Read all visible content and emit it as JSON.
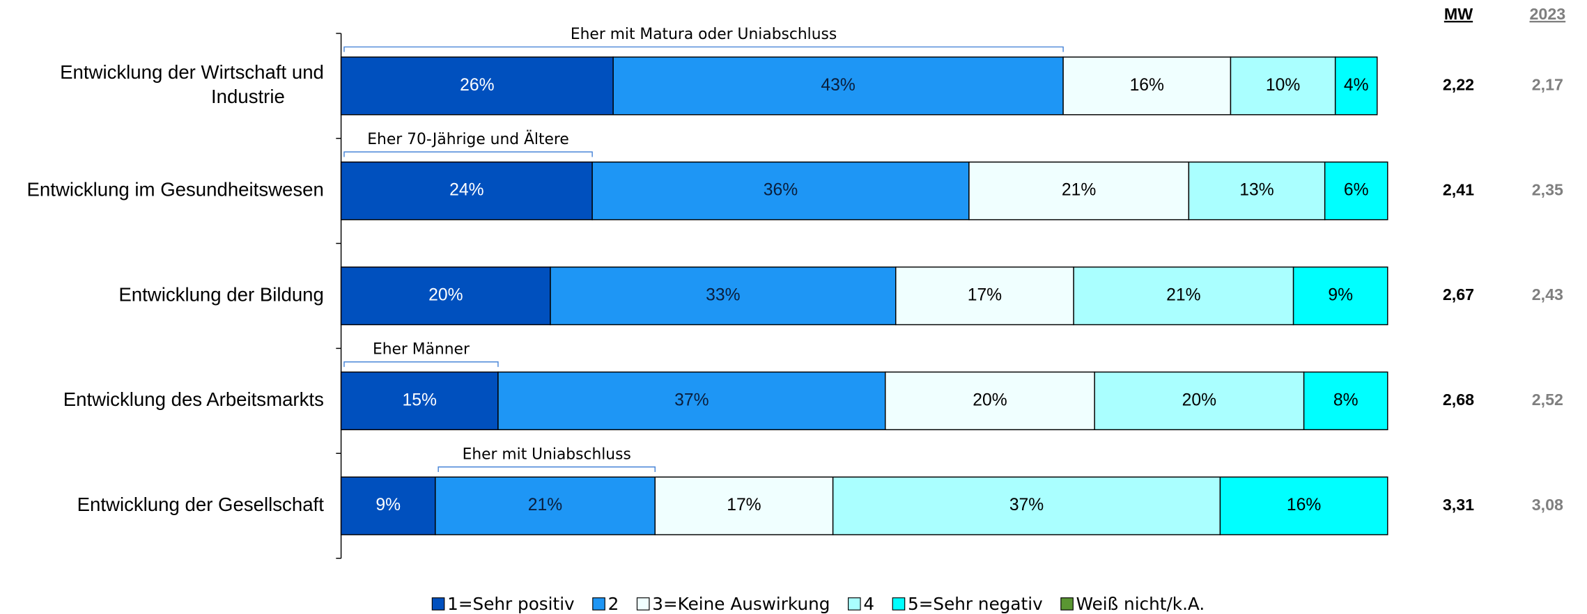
{
  "chart_data": {
    "type": "stacked_bar_horizontal",
    "categories": [
      "Entwicklung der Wirtschaft und Industrie",
      "Entwicklung im Gesundheitswesen",
      "Entwicklung der Bildung",
      "Entwicklung des Arbeitsmarkts",
      "Entwicklung der Gesellschaft"
    ],
    "series": [
      {
        "name": "1=Sehr positiv",
        "color": "#0050be",
        "text_color": "#ffffff",
        "values": [
          26,
          24,
          20,
          15,
          9
        ],
        "value_labels": [
          "26%",
          "24%",
          "20%",
          "15%",
          "9%"
        ]
      },
      {
        "name": "2",
        "color": "#1e96f5",
        "text_color": "#0a1e3c",
        "values": [
          43,
          36,
          33,
          37,
          21
        ],
        "value_labels": [
          "43%",
          "36%",
          "33%",
          "37%",
          "21%"
        ]
      },
      {
        "name": "3=Keine Auswirkung",
        "color": "#f0ffff",
        "text_color": "#000000",
        "values": [
          16,
          21,
          17,
          20,
          17
        ],
        "value_labels": [
          "16%",
          "21%",
          "17%",
          "20%",
          "17%"
        ]
      },
      {
        "name": "4",
        "color": "#aaffff",
        "text_color": "#000000",
        "values": [
          10,
          13,
          21,
          20,
          37
        ],
        "value_labels": [
          "10%",
          "13%",
          "21%",
          "20%",
          "37%"
        ]
      },
      {
        "name": "5=Sehr negativ",
        "color": "#00ffff",
        "text_color": "#000000",
        "values": [
          4,
          6,
          9,
          8,
          16
        ],
        "value_labels": [
          "4%",
          "6%",
          "9%",
          "8%",
          "16%"
        ]
      },
      {
        "name": "Weiß nicht/k.A.",
        "color": "#5a9632",
        "text_color": "#000000",
        "values": [
          0,
          0,
          0,
          0,
          0
        ]
      }
    ],
    "xlim": [
      0,
      100
    ],
    "columns": [
      {
        "header": "MW",
        "color": "#000000",
        "values": [
          2.22,
          2.41,
          2.67,
          2.68,
          3.31
        ],
        "labels": [
          "2,22",
          "2,41",
          "2,67",
          "2,68",
          "3,31"
        ]
      },
      {
        "header": "2023",
        "color": "#7f7f7f",
        "values": [
          2.17,
          2.35,
          2.43,
          2.52,
          3.08
        ],
        "labels": [
          "2,17",
          "2,35",
          "2,43",
          "2,52",
          "3,08"
        ]
      }
    ],
    "annotations": [
      {
        "text": "Eher mit Matura oder Uniabschluss",
        "category": 0,
        "segments": [
          0,
          1
        ]
      },
      {
        "text": "Eher 70-Jährige und Ältere",
        "category": 1,
        "segments": [
          0,
          0
        ]
      },
      {
        "text": "Eher Männer",
        "category": 3,
        "segments": [
          0,
          0
        ]
      },
      {
        "text": "Eher mit Uniabschluss",
        "category": 4,
        "segments": [
          1,
          1
        ]
      }
    ]
  }
}
